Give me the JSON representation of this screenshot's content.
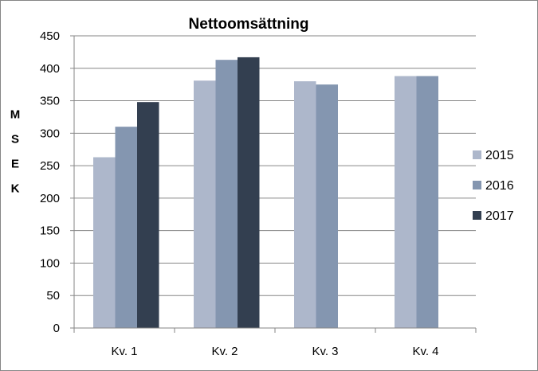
{
  "chart_data": {
    "type": "bar",
    "title": "Nettoomsättning",
    "xlabel": "",
    "ylabel": "MSEK",
    "categories": [
      "Kv. 1",
      "Kv. 2",
      "Kv. 3",
      "Kv. 4"
    ],
    "series": [
      {
        "name": "2015",
        "values": [
          263,
          381,
          380,
          388
        ],
        "color": "#adb7cb"
      },
      {
        "name": "2016",
        "values": [
          310,
          413,
          375,
          388
        ],
        "color": "#8496b0"
      },
      {
        "name": "2017",
        "values": [
          348,
          417,
          null,
          null
        ],
        "color": "#333f50"
      }
    ],
    "ylim": [
      0,
      450
    ],
    "yticks": [
      0,
      50,
      100,
      150,
      200,
      250,
      300,
      350,
      400,
      450
    ],
    "grid": true,
    "legend": "right"
  }
}
